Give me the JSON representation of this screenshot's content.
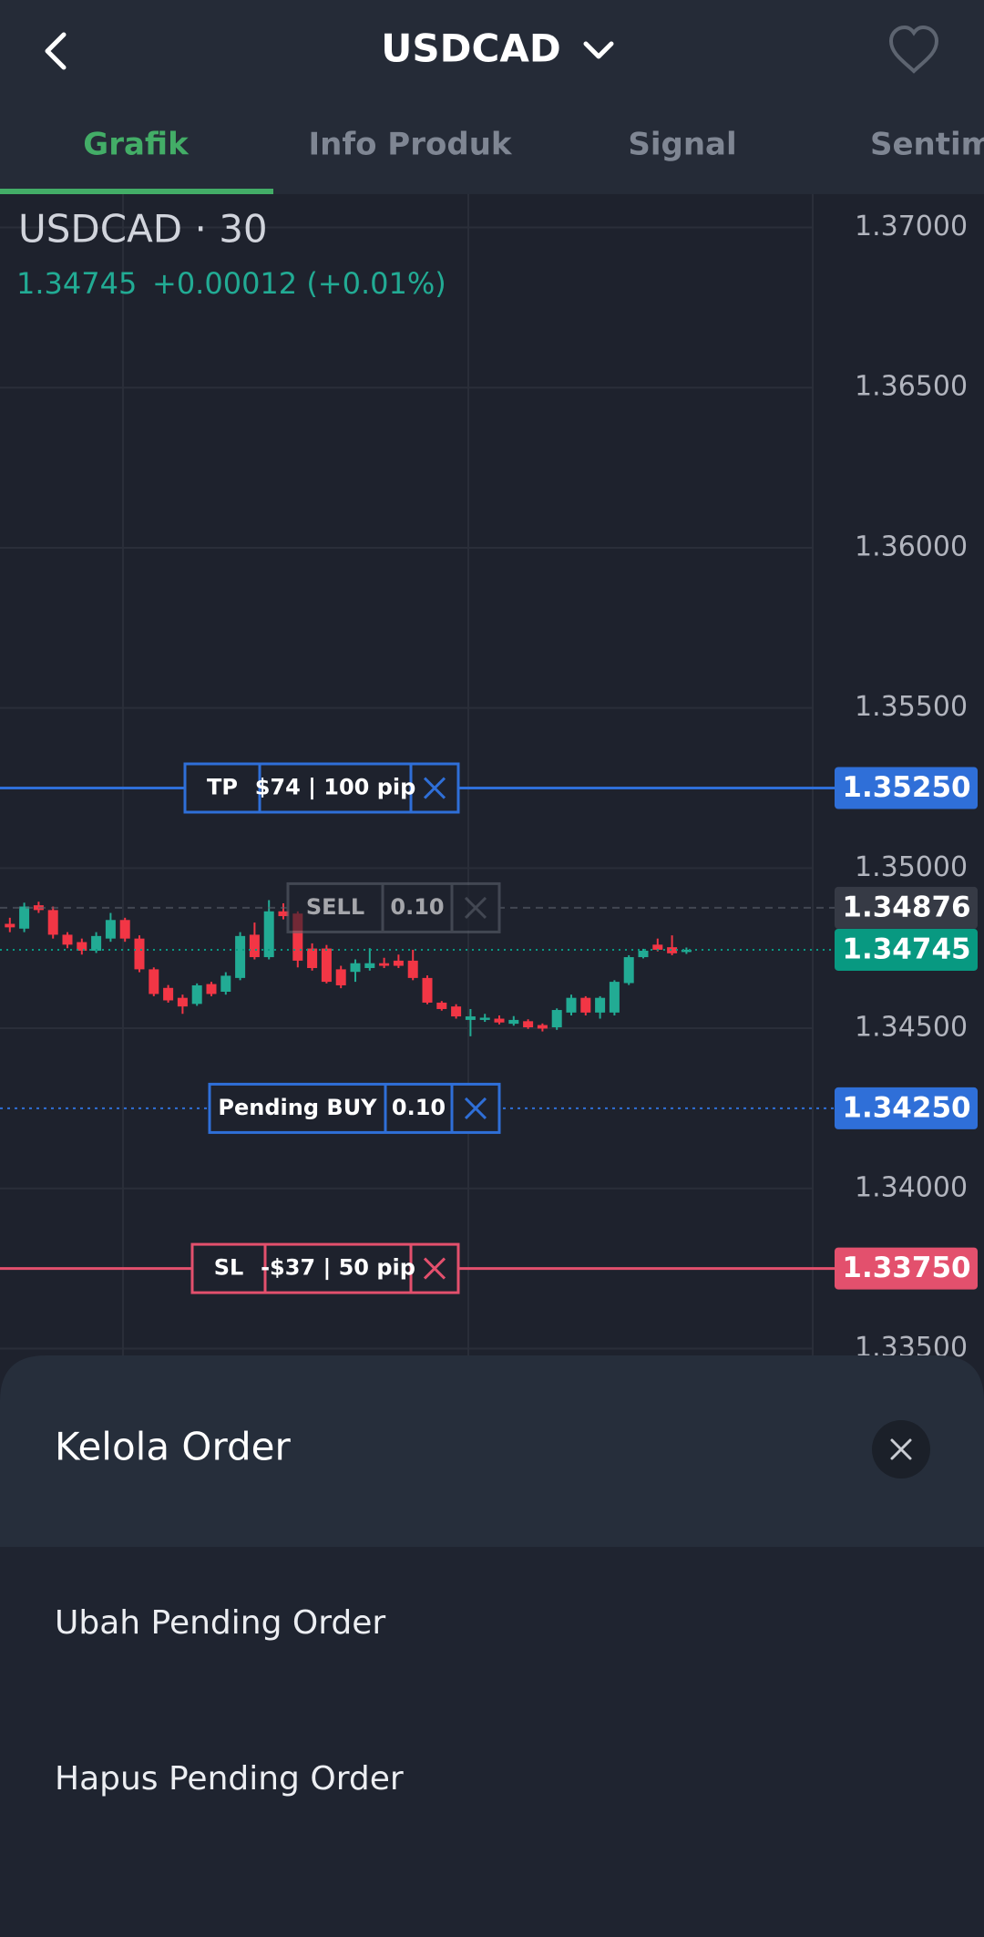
{
  "header": {
    "title": "USDCAD"
  },
  "tabs": [
    "Grafik",
    "Info Produk",
    "Signal",
    "Sentimen"
  ],
  "chart_data": {
    "type": "candlestick",
    "title": "USDCAD · 30",
    "quote_price": "1.34745",
    "quote_change": "+0.00012 (+0.01%)",
    "ylim": [
      1.3347,
      1.37104
    ],
    "yticks": [
      {
        "value": 1.37,
        "label": "1.37000"
      },
      {
        "value": 1.365,
        "label": "1.36500"
      },
      {
        "value": 1.36,
        "label": "1.36000"
      },
      {
        "value": 1.355,
        "label": "1.35500"
      },
      {
        "value": 1.35,
        "label": "1.35000"
      },
      {
        "value": 1.345,
        "label": "1.34500"
      },
      {
        "value": 1.34,
        "label": "1.34000"
      },
      {
        "value": 1.335,
        "label": "1.33500"
      }
    ],
    "grid": true,
    "up_color": "#22ab94",
    "down_color": "#f23645",
    "candles": {
      "open": [
        1.34826,
        1.34811,
        1.34884,
        1.34869,
        1.34792,
        1.34769,
        1.34742,
        1.3478,
        1.34838,
        1.3478,
        1.34684,
        1.34626,
        1.34595,
        1.34576,
        1.34638,
        1.34614,
        1.34657,
        1.34792,
        1.34722,
        1.34865,
        1.34858,
        1.34749,
        1.34749,
        1.34684,
        1.34676,
        1.34688,
        1.34703,
        1.34711,
        1.34711,
        1.34657,
        1.3458,
        1.34568,
        1.34526,
        1.34526,
        1.3453,
        1.34514,
        1.34522,
        1.3451,
        1.34503,
        1.34549,
        1.34595,
        1.34549,
        1.34549,
        1.34641,
        1.34722,
        1.34761,
        1.34753,
        1.34738
      ],
      "high": [
        1.34845,
        1.34892,
        1.34895,
        1.3488,
        1.348,
        1.3478,
        1.348,
        1.3486,
        1.34845,
        1.3479,
        1.3469,
        1.34635,
        1.34605,
        1.3464,
        1.34645,
        1.34675,
        1.348,
        1.3483,
        1.349,
        1.3489,
        1.34865,
        1.34765,
        1.3476,
        1.34695,
        1.34715,
        1.3475,
        1.3472,
        1.3473,
        1.34745,
        1.34665,
        1.34585,
        1.34575,
        1.3456,
        1.34545,
        1.3454,
        1.34538,
        1.34528,
        1.34515,
        1.34562,
        1.34605,
        1.346,
        1.346,
        1.3465,
        1.34728,
        1.34748,
        1.3478,
        1.3479,
        1.34752
      ],
      "low": [
        1.348,
        1.348,
        1.3486,
        1.3478,
        1.3475,
        1.3473,
        1.34735,
        1.3477,
        1.3477,
        1.34675,
        1.346,
        1.3458,
        1.34545,
        1.3457,
        1.346,
        1.34605,
        1.3465,
        1.34715,
        1.34715,
        1.3484,
        1.3469,
        1.3468,
        1.3464,
        1.34625,
        1.34645,
        1.3468,
        1.34688,
        1.34688,
        1.3465,
        1.34575,
        1.34555,
        1.3453,
        1.34475,
        1.3452,
        1.34512,
        1.34508,
        1.34498,
        1.3449,
        1.34495,
        1.3454,
        1.3454,
        1.3453,
        1.3454,
        1.34635,
        1.34718,
        1.3474,
        1.34728,
        1.34732
      ],
      "close": [
        1.34815,
        1.3488,
        1.34869,
        1.34792,
        1.34761,
        1.34742,
        1.34788,
        1.34838,
        1.3478,
        1.34684,
        1.34607,
        1.34587,
        1.34568,
        1.34634,
        1.34607,
        1.34664,
        1.34788,
        1.34722,
        1.34865,
        1.3485,
        1.34711,
        1.34688,
        1.34645,
        1.34634,
        1.34703,
        1.34703,
        1.34695,
        1.34695,
        1.34657,
        1.3458,
        1.3456,
        1.34537,
        1.34537,
        1.34533,
        1.34518,
        1.34526,
        1.34503,
        1.34499,
        1.34557,
        1.34595,
        1.34549,
        1.34595,
        1.34645,
        1.34722,
        1.34742,
        1.34745,
        1.34734,
        1.34745
      ]
    },
    "orders": [
      {
        "side": "TP",
        "info": "$74 | 100 pip",
        "value": 1.3525,
        "label": "1.35250",
        "color": "#2f6fd8",
        "line": "solid"
      },
      {
        "side": "SELL",
        "info": "0.10",
        "value": 1.34876,
        "label": "1.34876",
        "color": "#5b606b",
        "line": "dashed"
      },
      {
        "side": "Pending BUY",
        "info": "0.10",
        "value": 1.3425,
        "label": "1.34250",
        "color": "#2f6fd8",
        "line": "dotted"
      },
      {
        "side": "SL",
        "info": "-$37 | 50 pip",
        "value": 1.3375,
        "label": "1.33750",
        "color": "#e3506d",
        "line": "solid"
      }
    ],
    "last_price": {
      "value": 1.34745,
      "label": "1.34745",
      "color": "#089981"
    }
  },
  "sheet": {
    "title": "Kelola Order",
    "items": [
      "Ubah Pending Order",
      "Hapus Pending Order"
    ]
  }
}
